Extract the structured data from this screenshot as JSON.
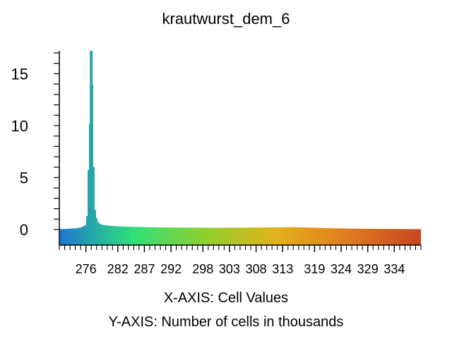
{
  "chart_data": {
    "type": "bar",
    "title": "krautwurst_dem_6",
    "xlabel": "X-AXIS: Cell Values",
    "ylabel": "Y-AXIS: Number of cells in thousands",
    "xlim": [
      271,
      339
    ],
    "ylim": [
      -1.5,
      17.2
    ],
    "x_ticks": [
      "276",
      "282",
      "287",
      "292",
      "298",
      "303",
      "308",
      "313",
      "319",
      "324",
      "329",
      "334"
    ],
    "x_tick_values": [
      276,
      282,
      287,
      292,
      298,
      303,
      308,
      313,
      319,
      324,
      329,
      334
    ],
    "y_ticks": [
      "0",
      "5",
      "10",
      "15"
    ],
    "y_tick_values": [
      0,
      5,
      10,
      15
    ],
    "grid": false,
    "legend": "none",
    "color_ramp": [
      "#1e78d2",
      "#2ee07a",
      "#8fd02e",
      "#e2b21a",
      "#e07a1e",
      "#c8451e"
    ],
    "series": [
      {
        "x": [
          272,
          273,
          274,
          275,
          276,
          277,
          277.5,
          278,
          278.5,
          279,
          280,
          282,
          285,
          290,
          295,
          300,
          305,
          310,
          315,
          318,
          320,
          322,
          324,
          326,
          328,
          330,
          332,
          334,
          336,
          338
        ],
        "values": [
          0.05,
          0.08,
          0.12,
          0.2,
          0.5,
          17.2,
          2.3,
          0.8,
          0.55,
          0.45,
          0.38,
          0.3,
          0.25,
          0.2,
          0.18,
          0.17,
          0.18,
          0.2,
          0.22,
          0.18,
          0.15,
          0.12,
          0.1,
          0.08,
          0.07,
          0.06,
          0.05,
          0.05,
          0.04,
          0.03
        ]
      }
    ]
  }
}
